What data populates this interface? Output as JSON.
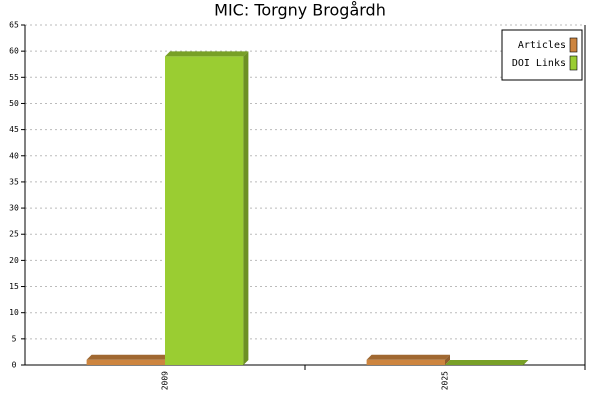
{
  "chart_data": {
    "type": "bar",
    "title": "MIC: Torgny Brogårdh",
    "categories": [
      "2009",
      "2025"
    ],
    "series": [
      {
        "name": "Articles",
        "color": "#cd853f",
        "values": [
          1,
          1
        ]
      },
      {
        "name": "DOI Links",
        "color": "#9acd32",
        "values": [
          59,
          0
        ]
      }
    ],
    "ylim": [
      0,
      65
    ],
    "yticks": [
      0,
      5,
      10,
      15,
      20,
      25,
      30,
      35,
      40,
      45,
      50,
      55,
      60,
      65
    ],
    "grid": true,
    "legend": "top-right"
  }
}
